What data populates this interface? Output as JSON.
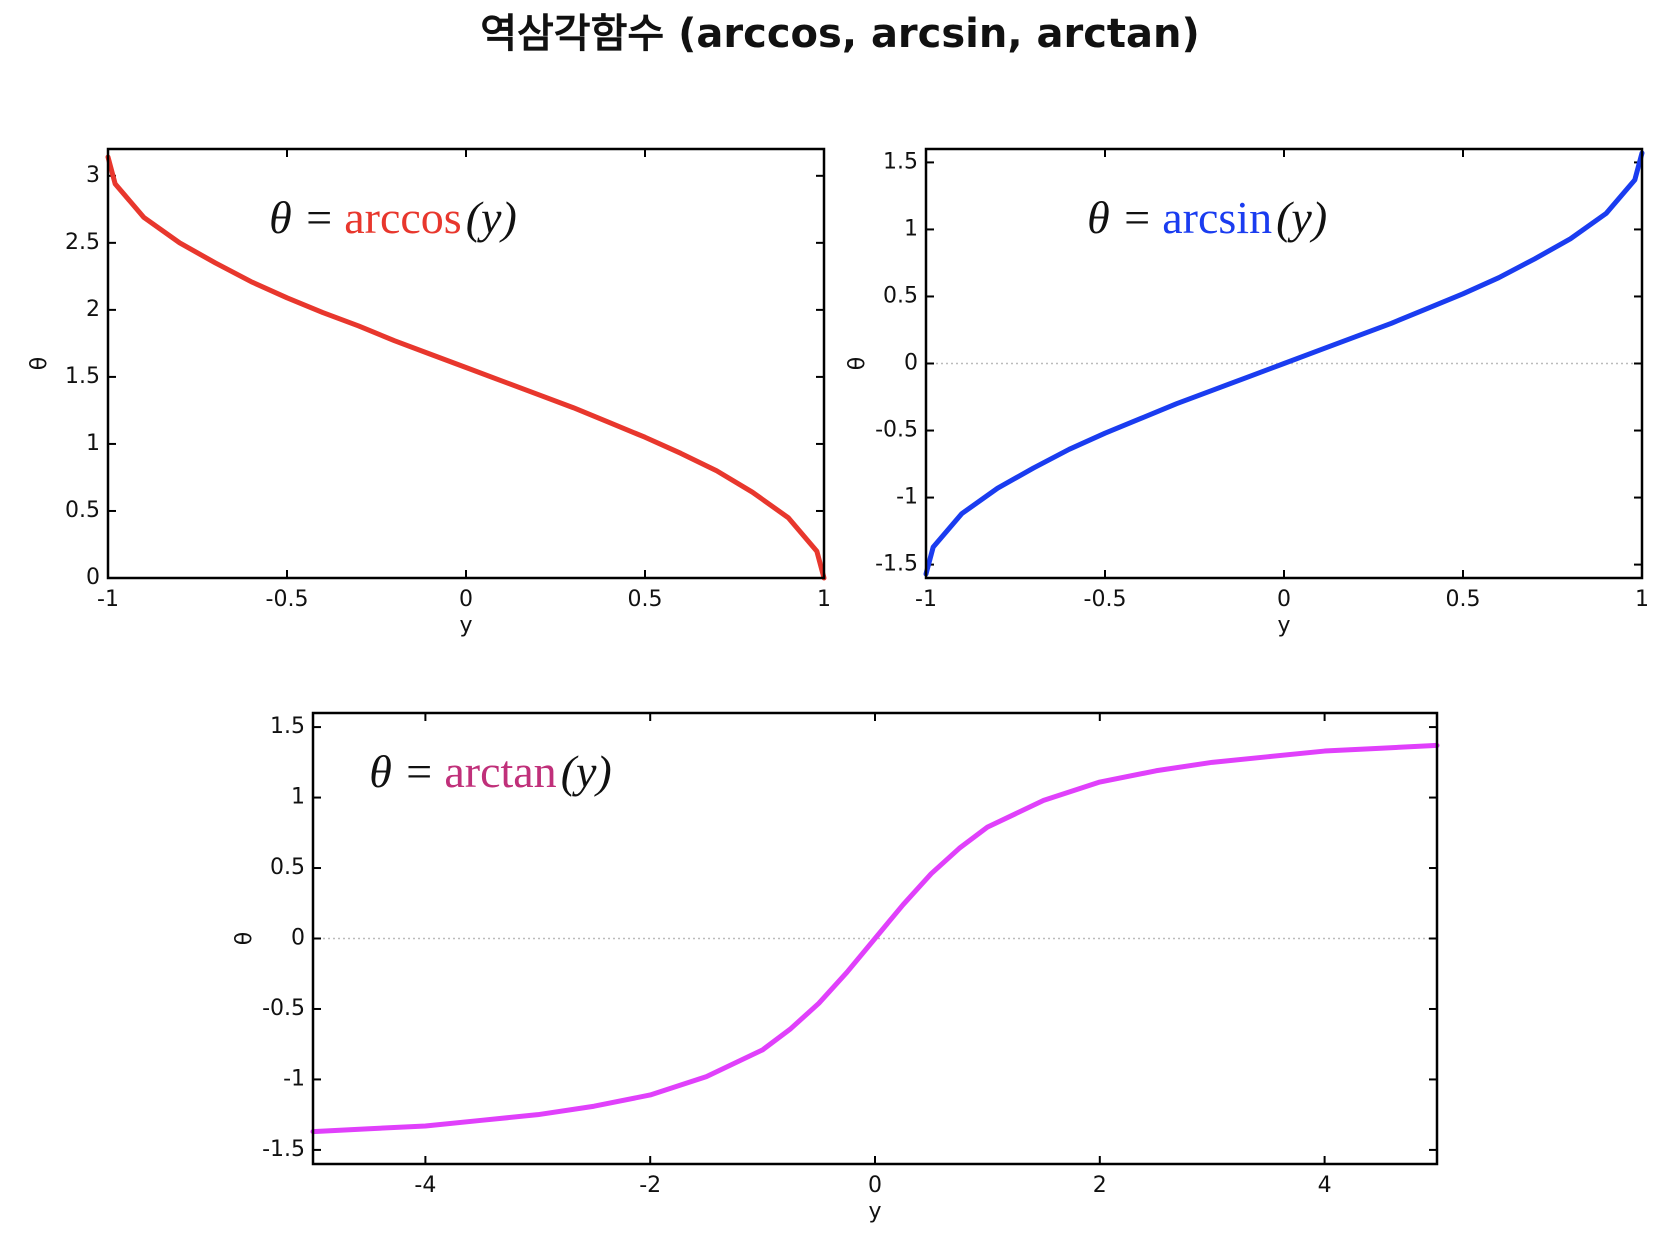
{
  "title": "역삼각함수 (arccos, arcsin, arctan)",
  "chart_data": [
    {
      "type": "line",
      "xlabel": "y",
      "ylabel": "θ",
      "annotation": {
        "lhs": "θ =",
        "function": "arccos",
        "argument": "(y)",
        "color": "#e8372d"
      },
      "x": [
        -1,
        -0.98,
        -0.9,
        -0.8,
        -0.7,
        -0.6,
        -0.5,
        -0.4,
        -0.3,
        -0.2,
        -0.1,
        0,
        0.1,
        0.2,
        0.3,
        0.4,
        0.5,
        0.6,
        0.7,
        0.8,
        0.9,
        0.98,
        1
      ],
      "series": [
        {
          "name": "arccos",
          "color": "#e8372d",
          "values": [
            3.14,
            2.94,
            2.69,
            2.5,
            2.35,
            2.21,
            2.09,
            1.98,
            1.88,
            1.77,
            1.67,
            1.57,
            1.47,
            1.37,
            1.27,
            1.16,
            1.05,
            0.93,
            0.8,
            0.64,
            0.45,
            0.2,
            0
          ]
        }
      ],
      "xlim": [
        -1,
        1
      ],
      "xticks": [
        -1,
        -0.5,
        0,
        0.5,
        1
      ],
      "ylim": [
        0,
        3.2
      ],
      "yticks": [
        0,
        0.5,
        1,
        1.5,
        2,
        2.5,
        3
      ],
      "zero_line": false
    },
    {
      "type": "line",
      "xlabel": "y",
      "ylabel": "θ",
      "annotation": {
        "lhs": "θ =",
        "function": "arcsin",
        "argument": "(y)",
        "color": "#1a3cf0"
      },
      "x": [
        -1,
        -0.98,
        -0.9,
        -0.8,
        -0.7,
        -0.6,
        -0.5,
        -0.4,
        -0.3,
        -0.2,
        -0.1,
        0,
        0.1,
        0.2,
        0.3,
        0.4,
        0.5,
        0.6,
        0.7,
        0.8,
        0.9,
        0.98,
        1
      ],
      "series": [
        {
          "name": "arcsin",
          "color": "#1a3cf0",
          "values": [
            -1.57,
            -1.37,
            -1.12,
            -0.93,
            -0.78,
            -0.64,
            -0.52,
            -0.41,
            -0.3,
            -0.2,
            -0.1,
            0,
            0.1,
            0.2,
            0.3,
            0.41,
            0.52,
            0.64,
            0.78,
            0.93,
            1.12,
            1.37,
            1.57
          ]
        }
      ],
      "xlim": [
        -1,
        1
      ],
      "xticks": [
        -1,
        -0.5,
        0,
        0.5,
        1
      ],
      "ylim": [
        -1.6,
        1.6
      ],
      "yticks": [
        -1.5,
        -1,
        -0.5,
        0,
        0.5,
        1,
        1.5
      ],
      "zero_line": true
    },
    {
      "type": "line",
      "xlabel": "y",
      "ylabel": "θ",
      "annotation": {
        "lhs": "θ =",
        "function": "arctan",
        "argument": "(y)",
        "color": "#c0307a"
      },
      "x": [
        -5,
        -4.5,
        -4,
        -3.5,
        -3,
        -2.5,
        -2,
        -1.5,
        -1,
        -0.75,
        -0.5,
        -0.25,
        0,
        0.25,
        0.5,
        0.75,
        1,
        1.5,
        2,
        2.5,
        3,
        3.5,
        4,
        4.5,
        5
      ],
      "series": [
        {
          "name": "arctan",
          "color": "#e040fb",
          "values": [
            -1.37,
            -1.35,
            -1.33,
            -1.29,
            -1.25,
            -1.19,
            -1.11,
            -0.98,
            -0.79,
            -0.64,
            -0.46,
            -0.24,
            0,
            0.24,
            0.46,
            0.64,
            0.79,
            0.98,
            1.11,
            1.19,
            1.25,
            1.29,
            1.33,
            1.35,
            1.37
          ]
        }
      ],
      "xlim": [
        -5,
        5
      ],
      "xticks": [
        -4,
        -2,
        0,
        2,
        4
      ],
      "ylim": [
        -1.6,
        1.6
      ],
      "yticks": [
        -1.5,
        -1,
        -0.5,
        0,
        0.5,
        1,
        1.5
      ],
      "zero_line": true
    }
  ]
}
